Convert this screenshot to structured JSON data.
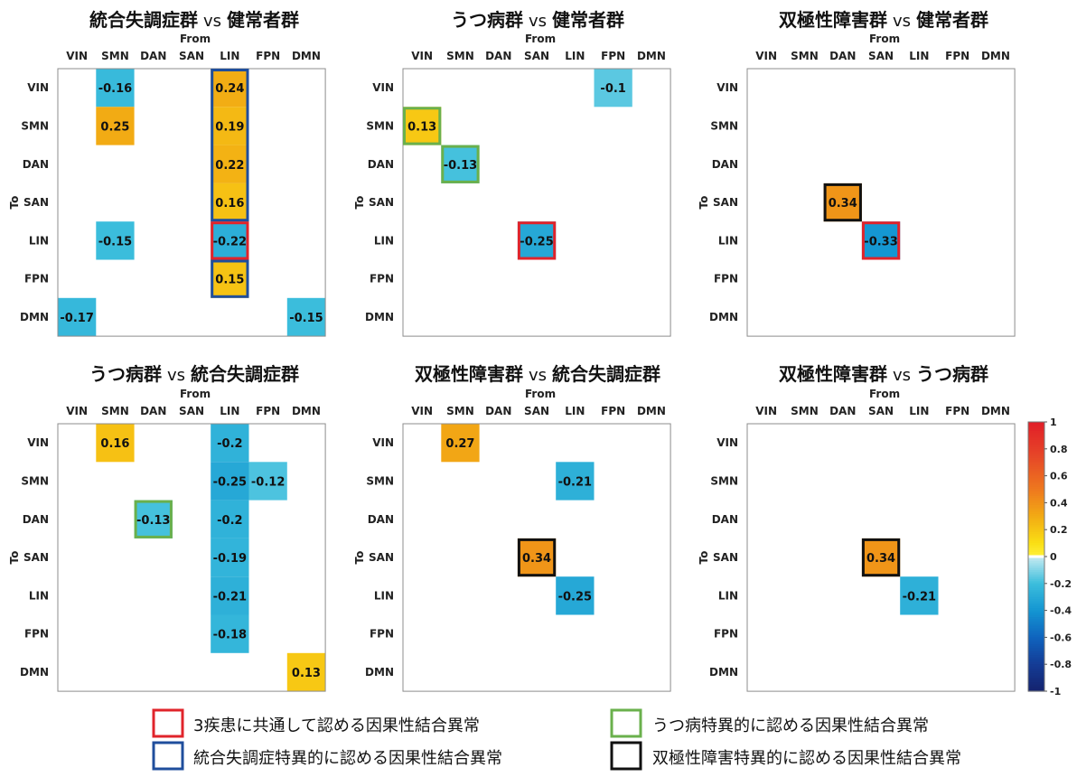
{
  "networks": [
    "VIN",
    "SMN",
    "DAN",
    "SAN",
    "LIN",
    "FPN",
    "DMN"
  ],
  "x_axis_label": "From",
  "y_axis_label": "To",
  "colors": {
    "red": "#e0242b",
    "blue": "#1f4e9c",
    "green": "#6ab04c",
    "black": "#111111"
  },
  "chart_data": [
    {
      "type": "heatmap",
      "title_left": "統合失調症群",
      "title_vs": "vs",
      "title_right": "健常者群",
      "cells": [
        {
          "to": "VIN",
          "from": "SMN",
          "value": -0.16
        },
        {
          "to": "VIN",
          "from": "LIN",
          "value": 0.24
        },
        {
          "to": "SMN",
          "from": "SMN",
          "value": 0.25
        },
        {
          "to": "SMN",
          "from": "LIN",
          "value": 0.19
        },
        {
          "to": "DAN",
          "from": "LIN",
          "value": 0.22
        },
        {
          "to": "SAN",
          "from": "LIN",
          "value": 0.16
        },
        {
          "to": "LIN",
          "from": "SMN",
          "value": -0.15
        },
        {
          "to": "LIN",
          "from": "LIN",
          "value": -0.22
        },
        {
          "to": "FPN",
          "from": "LIN",
          "value": 0.15
        },
        {
          "to": "DMN",
          "from": "VIN",
          "value": -0.17
        },
        {
          "to": "DMN",
          "from": "DMN",
          "value": -0.15
        }
      ],
      "boxes": [
        {
          "from": "LIN",
          "to_start": "VIN",
          "to_end": "SAN",
          "color": "blue"
        },
        {
          "from": "LIN",
          "to_start": "LIN",
          "to_end": "LIN",
          "color": "red"
        },
        {
          "from": "LIN",
          "to_start": "FPN",
          "to_end": "FPN",
          "color": "blue"
        }
      ]
    },
    {
      "type": "heatmap",
      "title_left": "うつ病群",
      "title_vs": "vs",
      "title_right": "健常者群",
      "cells": [
        {
          "to": "VIN",
          "from": "FPN",
          "value": -0.1
        },
        {
          "to": "SMN",
          "from": "VIN",
          "value": 0.13
        },
        {
          "to": "DAN",
          "from": "SMN",
          "value": -0.13
        },
        {
          "to": "LIN",
          "from": "SAN",
          "value": -0.25
        }
      ],
      "boxes": [
        {
          "from": "VIN",
          "to_start": "SMN",
          "to_end": "SMN",
          "color": "green"
        },
        {
          "from": "SMN",
          "to_start": "DAN",
          "to_end": "DAN",
          "color": "green"
        },
        {
          "from": "SAN",
          "to_start": "LIN",
          "to_end": "LIN",
          "color": "red"
        }
      ]
    },
    {
      "type": "heatmap",
      "title_left": "双極性障害群",
      "title_vs": "vs",
      "title_right": "健常者群",
      "cells": [
        {
          "to": "SAN",
          "from": "DAN",
          "value": 0.34
        },
        {
          "to": "LIN",
          "from": "SAN",
          "value": -0.33
        }
      ],
      "boxes": [
        {
          "from": "DAN",
          "to_start": "SAN",
          "to_end": "SAN",
          "color": "black"
        },
        {
          "from": "SAN",
          "to_start": "LIN",
          "to_end": "LIN",
          "color": "red"
        }
      ]
    },
    {
      "type": "heatmap",
      "title_left": "うつ病群",
      "title_vs": "vs",
      "title_right": "統合失調症群",
      "cells": [
        {
          "to": "VIN",
          "from": "SMN",
          "value": 0.16
        },
        {
          "to": "VIN",
          "from": "LIN",
          "value": -0.2
        },
        {
          "to": "SMN",
          "from": "LIN",
          "value": -0.25
        },
        {
          "to": "SMN",
          "from": "FPN",
          "value": -0.12
        },
        {
          "to": "DAN",
          "from": "DAN",
          "value": -0.13
        },
        {
          "to": "DAN",
          "from": "LIN",
          "value": -0.2
        },
        {
          "to": "SAN",
          "from": "LIN",
          "value": -0.19
        },
        {
          "to": "LIN",
          "from": "LIN",
          "value": -0.21
        },
        {
          "to": "FPN",
          "from": "LIN",
          "value": -0.18
        },
        {
          "to": "DMN",
          "from": "DMN",
          "value": 0.13
        }
      ],
      "boxes": [
        {
          "from": "DAN",
          "to_start": "DAN",
          "to_end": "DAN",
          "color": "green"
        }
      ]
    },
    {
      "type": "heatmap",
      "title_left": "双極性障害群",
      "title_vs": "vs",
      "title_right": "統合失調症群",
      "cells": [
        {
          "to": "VIN",
          "from": "SMN",
          "value": 0.27
        },
        {
          "to": "SMN",
          "from": "LIN",
          "value": -0.21
        },
        {
          "to": "SAN",
          "from": "SAN",
          "value": 0.34
        },
        {
          "to": "LIN",
          "from": "LIN",
          "value": -0.25
        }
      ],
      "boxes": [
        {
          "from": "SAN",
          "to_start": "SAN",
          "to_end": "SAN",
          "color": "black"
        }
      ]
    },
    {
      "type": "heatmap",
      "title_left": "双極性障害群",
      "title_vs": "vs",
      "title_right": "うつ病群",
      "cells": [
        {
          "to": "SAN",
          "from": "SAN",
          "value": 0.34
        },
        {
          "to": "LIN",
          "from": "LIN",
          "value": -0.21
        }
      ],
      "boxes": [
        {
          "from": "SAN",
          "to_start": "SAN",
          "to_end": "SAN",
          "color": "black"
        }
      ]
    }
  ],
  "colorbar": {
    "range": [
      -1,
      1
    ],
    "ticks": [
      "1",
      "0.8",
      "0.6",
      "0.4",
      "0.2",
      "0",
      "-0.2",
      "-0.4",
      "-0.6",
      "-0.8",
      "-1"
    ],
    "tick_values": [
      1,
      0.8,
      0.6,
      0.4,
      0.2,
      0,
      -0.2,
      -0.4,
      -0.6,
      -0.8,
      -1
    ]
  },
  "legend": [
    {
      "color": "red",
      "label": "3疾患に共通して認める因果性結合異常"
    },
    {
      "color": "green",
      "label": "うつ病特異的に認める因果性結合異常"
    },
    {
      "color": "blue",
      "label": "統合失調症特異的に認める因果性結合異常"
    },
    {
      "color": "black",
      "label": "双極性障害特異的に認める因果性結合異常"
    }
  ]
}
